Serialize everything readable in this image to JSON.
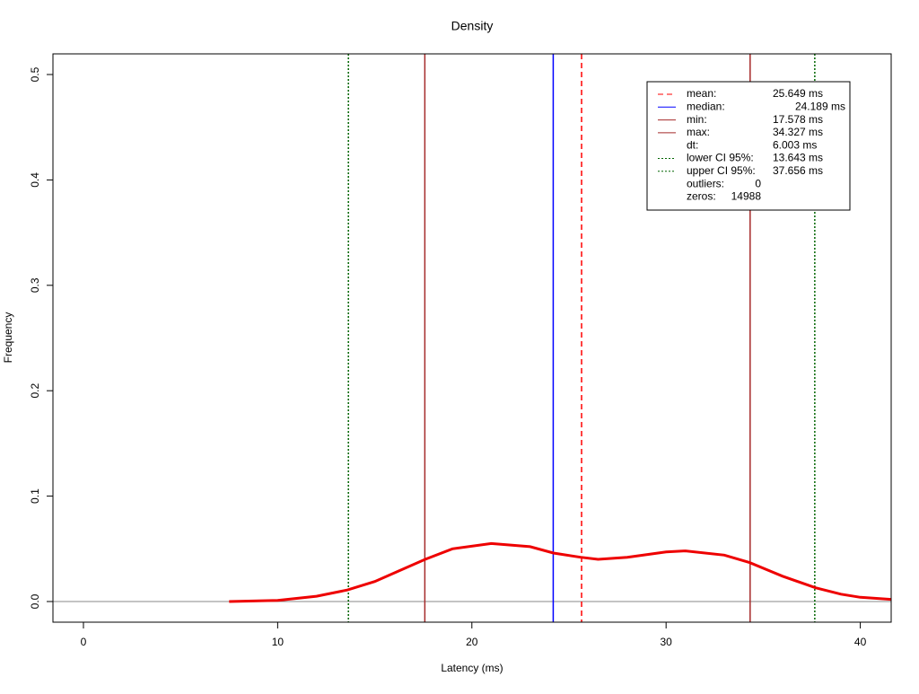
{
  "chart_data": {
    "type": "density",
    "title": "Density",
    "x_label": "Latency (ms)",
    "y_label": "Frequency",
    "x": [
      7.5,
      10,
      12,
      13.6,
      15,
      17.6,
      19,
      21,
      23,
      24.2,
      25.6,
      26.5,
      28,
      30,
      31,
      33,
      34.3,
      36,
      37.7,
      39,
      40,
      41.6
    ],
    "values": [
      0.0,
      0.001,
      0.005,
      0.011,
      0.019,
      0.04,
      0.05,
      0.055,
      0.052,
      0.046,
      0.042,
      0.04,
      0.042,
      0.047,
      0.048,
      0.044,
      0.037,
      0.024,
      0.013,
      0.007,
      0.004,
      0.002
    ],
    "color": "#ee0000",
    "xlim": [
      -1.57,
      41.59
    ],
    "ylim": [
      -0.0196,
      0.5196
    ],
    "xticks": [
      0,
      10,
      20,
      30,
      40
    ],
    "yticks": [
      {
        "value": 0,
        "label": "0.0"
      },
      0.1,
      0.2,
      0.3,
      0.4,
      0.5
    ],
    "markers": [
      {
        "name": "mean:",
        "value": 25.649,
        "value_label": "25.649 ms",
        "color": "#ff0000",
        "style": "dashed"
      },
      {
        "name": "median:",
        "value": 24.189,
        "value_label": "24.189 ms",
        "color": "#0000ff",
        "style": "solid"
      },
      {
        "name": "min:",
        "value": 17.578,
        "value_label": "17.578 ms",
        "color": "#a52a2a",
        "style": "solid"
      },
      {
        "name": "max:",
        "value": 34.327,
        "value_label": "34.327 ms",
        "color": "#a52a2a",
        "style": "solid"
      },
      {
        "name": "lower CI 95%:",
        "value": 13.643,
        "value_label": "13.643 ms",
        "color": "#006400",
        "style": "dotted"
      },
      {
        "name": "upper CI 95%:",
        "value": 37.656,
        "value_label": "37.656 ms",
        "color": "#006400",
        "style": "dotted"
      }
    ],
    "dt": {
      "name": "dt:",
      "value": 6.003,
      "value_label": "6.003 ms"
    },
    "stats": [
      {
        "name": "outliers:",
        "value": 0
      },
      {
        "name": "zeros:",
        "value": 14988
      }
    ]
  }
}
